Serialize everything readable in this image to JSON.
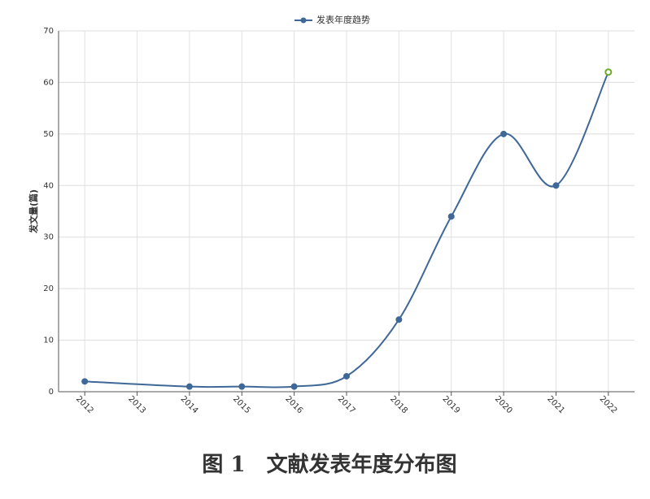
{
  "chart_data": {
    "type": "line",
    "legend": "发表年度趋势",
    "y_label": "发文量(篇)",
    "caption": "图 1　文献发表年度分布图",
    "x": [
      2012,
      2014,
      2015,
      2016,
      2017,
      2018,
      2019,
      2020,
      2021,
      2022
    ],
    "values": [
      2,
      1,
      1,
      1,
      3,
      14,
      34,
      50,
      40,
      62
    ],
    "color": "#3f6898",
    "last_point_color": "#6aaa2a",
    "xlim": [
      2011.5,
      2022.5
    ],
    "xticks": [
      2012,
      2013,
      2014,
      2015,
      2016,
      2017,
      2018,
      2019,
      2020,
      2021,
      2022
    ],
    "ylim": [
      0,
      70
    ],
    "yticks": [
      0,
      10,
      20,
      30,
      40,
      50,
      60,
      70
    ],
    "grid": true,
    "smooth": true
  }
}
